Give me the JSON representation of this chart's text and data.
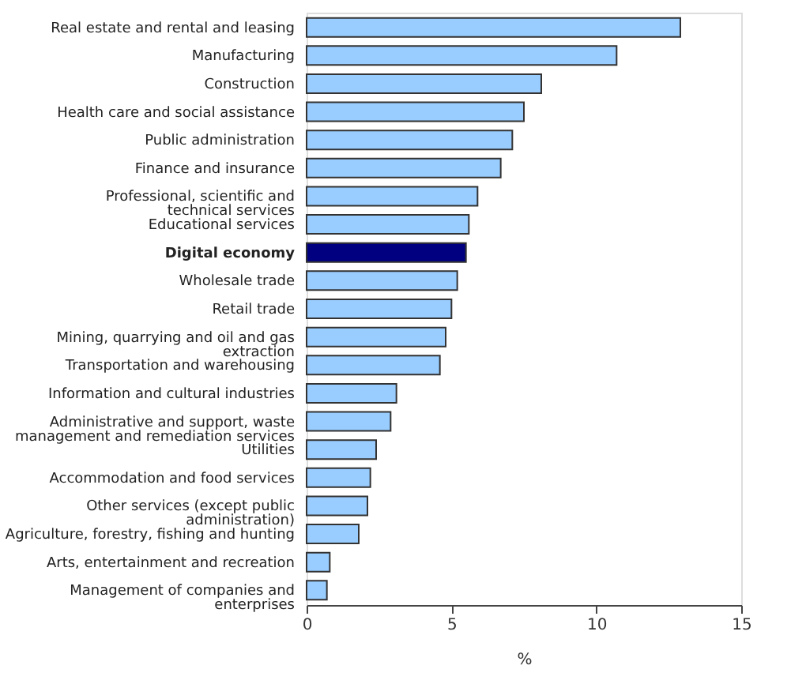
{
  "chart_data": {
    "type": "bar",
    "orientation": "horizontal",
    "xlabel": "%",
    "categories": [
      "Real estate and rental and leasing",
      "Manufacturing",
      "Construction",
      "Health care and social assistance",
      "Public administration",
      "Finance and insurance",
      "Professional, scientific and\ntechnical services",
      "Educational services",
      "Digital economy",
      "Wholesale trade",
      "Retail trade",
      "Mining, quarrying and oil and gas\nextraction",
      "Transportation and warehousing",
      "Information and cultural industries",
      "Administrative and support, waste\nmanagement and remediation services",
      "Utilities",
      "Accommodation and food services",
      "Other services (except public\nadministration)",
      "Agriculture, forestry, fishing and hunting",
      "Arts, entertainment and recreation",
      "Management of companies and\nenterprises"
    ],
    "values": [
      12.9,
      10.7,
      8.1,
      7.5,
      7.1,
      6.7,
      5.9,
      5.6,
      5.5,
      5.2,
      5.0,
      4.8,
      4.6,
      3.1,
      2.9,
      2.4,
      2.2,
      2.1,
      1.8,
      0.8,
      0.7
    ],
    "colors": [
      "#99ccff",
      "#99ccff",
      "#99ccff",
      "#99ccff",
      "#99ccff",
      "#99ccff",
      "#99ccff",
      "#99ccff",
      "#000080",
      "#99ccff",
      "#99ccff",
      "#99ccff",
      "#99ccff",
      "#99ccff",
      "#99ccff",
      "#99ccff",
      "#99ccff",
      "#99ccff",
      "#99ccff",
      "#99ccff",
      "#99ccff"
    ],
    "xlim": [
      0,
      15
    ],
    "xticks": [
      0,
      5,
      10,
      15
    ],
    "grid": false
  }
}
